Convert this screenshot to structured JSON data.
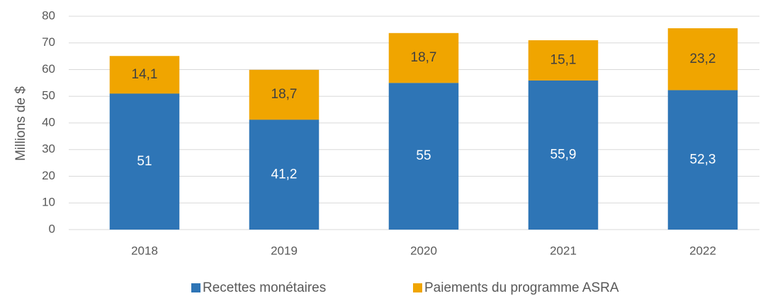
{
  "chart_data": {
    "type": "bar",
    "stacked": true,
    "y_label": "Millions de $",
    "categories": [
      "2018",
      "2019",
      "2020",
      "2021",
      "2022"
    ],
    "series": [
      {
        "name": "Recettes monétaires",
        "color": "#2e75b6",
        "values": [
          51,
          41.2,
          55,
          55.9,
          52.3
        ],
        "value_labels": [
          "51",
          "41,2",
          "55",
          "55,9",
          "52,3"
        ]
      },
      {
        "name": "Paiements du programme ASRA",
        "color": "#f0a500",
        "values": [
          14.1,
          18.7,
          18.7,
          15.1,
          23.2
        ],
        "value_labels": [
          "14,1",
          "18,7",
          "18,7",
          "15,1",
          "23,2"
        ]
      }
    ],
    "ylim": [
      0,
      80
    ],
    "yticks": [
      0,
      10,
      20,
      30,
      40,
      50,
      60,
      70,
      80
    ],
    "grid": true,
    "legend": "bottom"
  }
}
